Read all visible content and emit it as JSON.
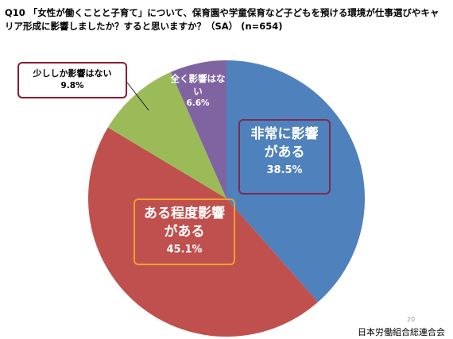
{
  "chart_data": {
    "type": "pie",
    "title": "Q10 「女性が働くことと子育て」について、保育園や学童保育など子どもを預ける環境が仕事選びやキャリア形成に影響しましたか？すると思いますか？（SA） (n=654)",
    "categories": [
      "非常に影響がある",
      "ある程度影響がある",
      "少ししか影響はない",
      "全く影響はない"
    ],
    "values": [
      38.5,
      45.1,
      9.8,
      6.6
    ],
    "value_labels": [
      "38.5%",
      "45.1%",
      "9.8%",
      "6.6%"
    ],
    "colors": [
      "#4f81bd",
      "#c0504d",
      "#9bbb59",
      "#8064a2"
    ]
  },
  "footer": {
    "page": "20",
    "organization": "日本労働組合総連合会"
  }
}
